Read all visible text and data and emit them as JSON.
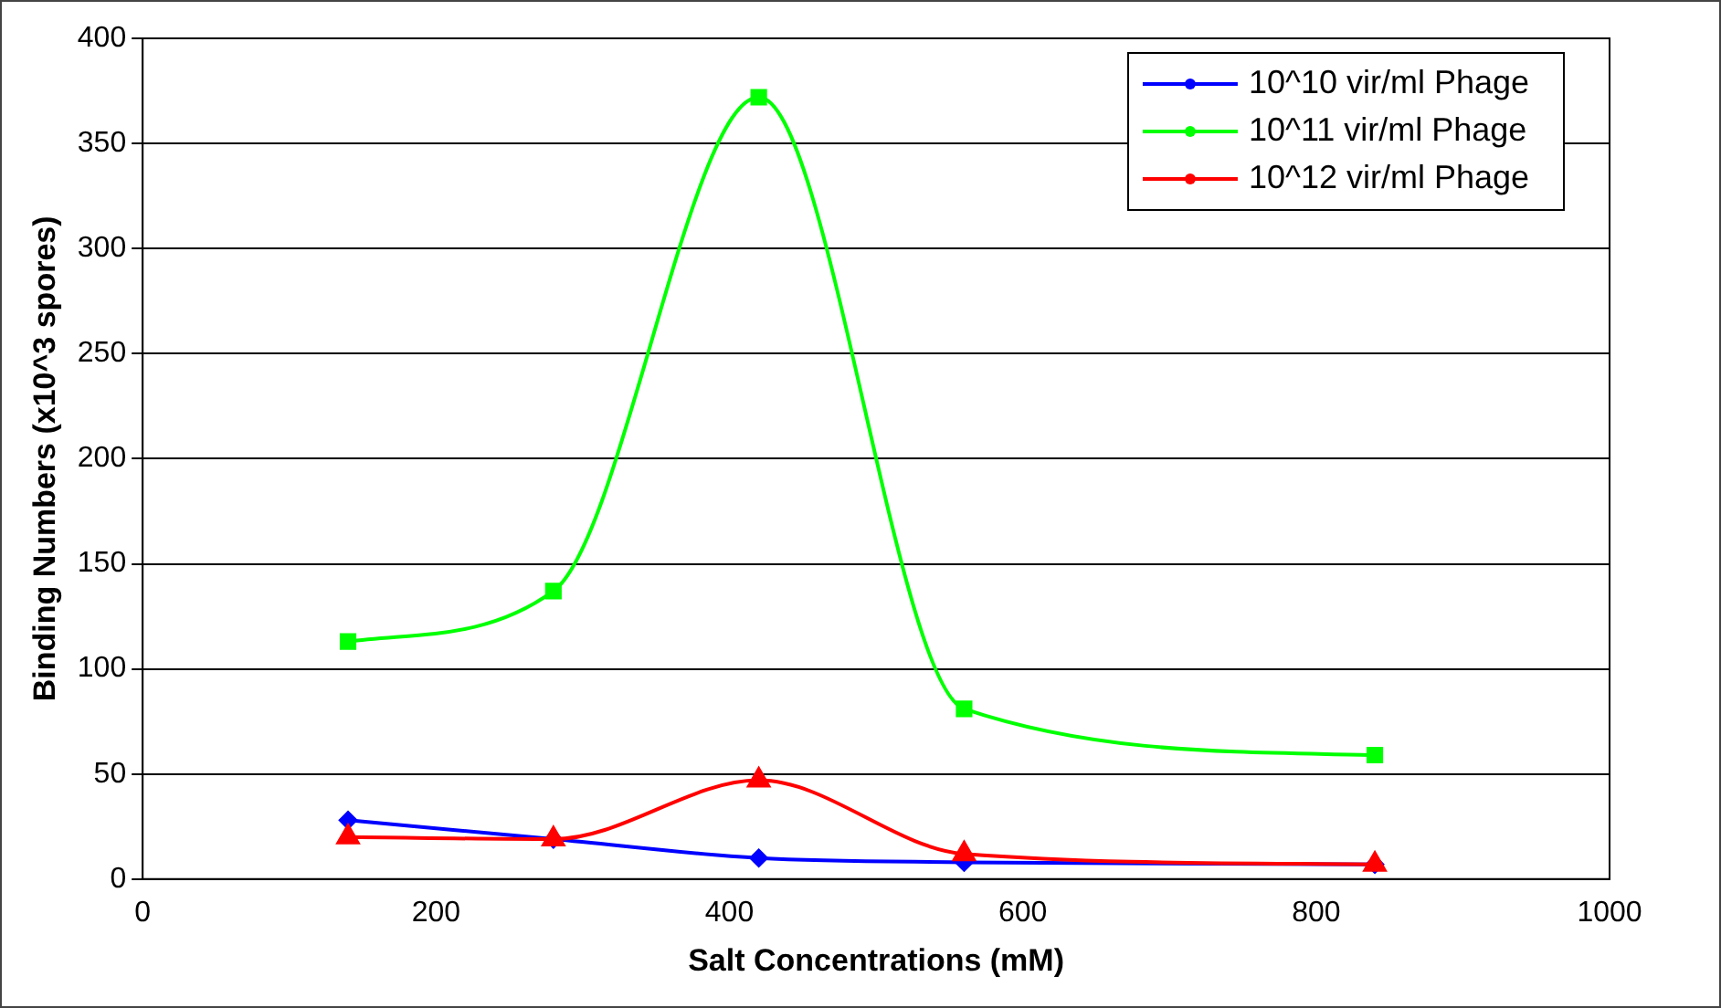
{
  "chart_data": {
    "type": "line",
    "xlabel": "Salt Concentrations (mM)",
    "ylabel": "Binding Numbers (x10^3 spores)",
    "x": [
      140,
      280,
      420,
      560,
      840
    ],
    "series": [
      {
        "name": "10^10 vir/ml Phage",
        "color": "#0000ff",
        "values": [
          28,
          19,
          10,
          8,
          7
        ],
        "marker": "diamond"
      },
      {
        "name": "10^11 vir/ml Phage",
        "color": "#00ff00",
        "values": [
          113,
          137,
          372,
          81,
          59
        ],
        "marker": "square"
      },
      {
        "name": "10^12 vir/ml Phage",
        "color": "#ff0000",
        "values": [
          20,
          19,
          47,
          12,
          7
        ],
        "marker": "triangle"
      }
    ],
    "xlim": [
      0,
      1000
    ],
    "xticks": [
      0,
      200,
      400,
      600,
      800,
      1000
    ],
    "ylim": [
      0,
      400
    ],
    "yticks": [
      0,
      50,
      100,
      150,
      200,
      250,
      300,
      350,
      400
    ],
    "grid": "y",
    "legend": "top right"
  }
}
